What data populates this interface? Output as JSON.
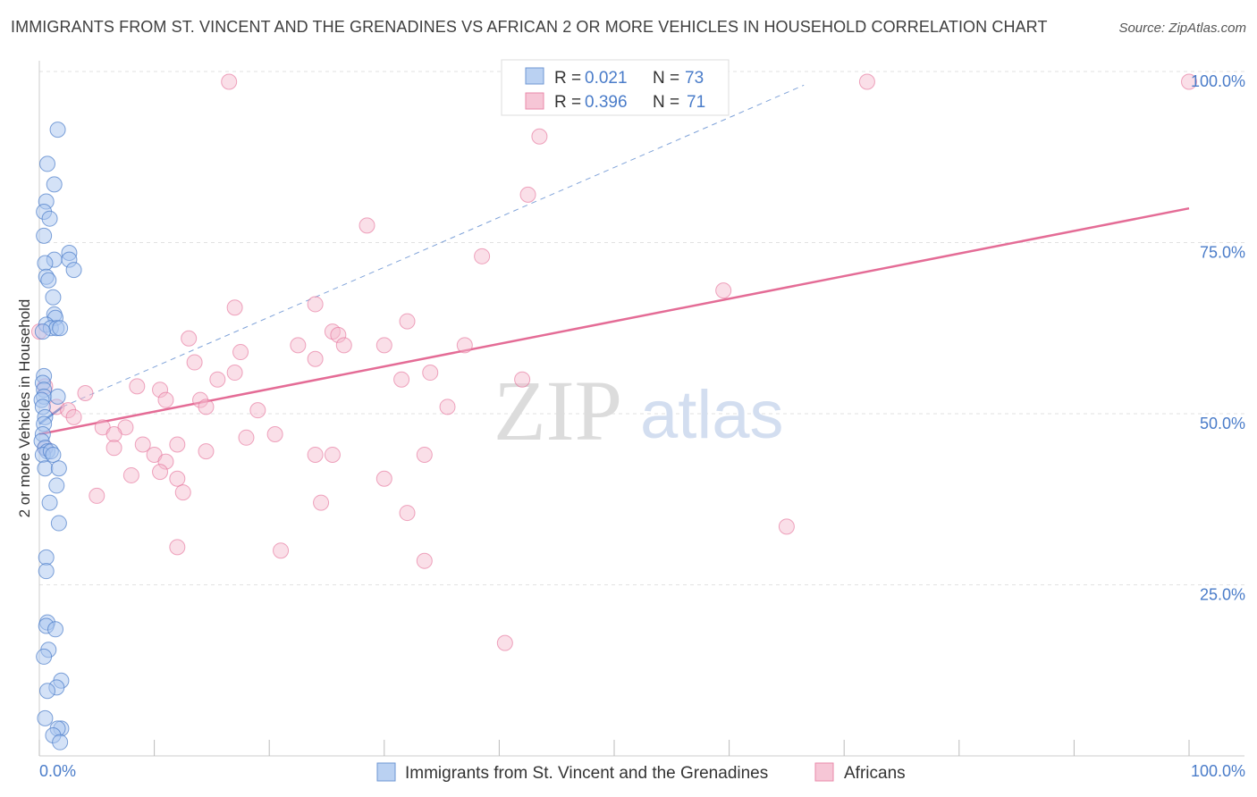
{
  "title": "IMMIGRANTS FROM ST. VINCENT AND THE GRENADINES VS AFRICAN 2 OR MORE VEHICLES IN HOUSEHOLD CORRELATION CHART",
  "source": "Source: ZipAtlas.com",
  "watermark": {
    "zip": "ZIP",
    "atlas": "atlas"
  },
  "colors": {
    "blue": "#4a7cc9",
    "blue_fill": "#a9c6f0",
    "pink": "#e46c96",
    "pink_fill": "#f4b9cd",
    "grid": "#e2e2e2"
  },
  "legend": {
    "rows": [
      {
        "r_label": "R =",
        "r_value": "0.021",
        "n_label": "N =",
        "n_value": "73"
      },
      {
        "r_label": "R =",
        "r_value": "0.396",
        "n_label": "N =",
        "n_value": "71"
      }
    ]
  },
  "bottom_legend": [
    "Immigrants from St. Vincent and the Grenadines",
    "Africans"
  ],
  "chart_data": {
    "type": "scatter",
    "title": "IMMIGRANTS FROM ST. VINCENT AND THE GRENADINES VS AFRICAN 2 OR MORE VEHICLES IN HOUSEHOLD CORRELATION CHART",
    "xlabel": "",
    "ylabel": "2 or more Vehicles in Household",
    "xlim": [
      0,
      100
    ],
    "ylim": [
      0,
      100
    ],
    "x_tick_labels": [
      "0.0%",
      "100.0%"
    ],
    "y_tick_labels": [
      "25.0%",
      "50.0%",
      "75.0%",
      "100.0%"
    ],
    "y_ticks": [
      25,
      50,
      75,
      100
    ],
    "grid": true,
    "legend_position": "top-center",
    "series": [
      {
        "name": "Immigrants from St. Vincent and the Grenadines",
        "color": "#4a7cc9",
        "points": [
          [
            1.6,
            91.5
          ],
          [
            0.7,
            86.5
          ],
          [
            1.3,
            83.5
          ],
          [
            0.6,
            81
          ],
          [
            0.4,
            79.5
          ],
          [
            0.9,
            78.5
          ],
          [
            0.4,
            76
          ],
          [
            2.6,
            73.5
          ],
          [
            1.3,
            72.5
          ],
          [
            0.5,
            72
          ],
          [
            2.6,
            72.5
          ],
          [
            3.0,
            71
          ],
          [
            0.6,
            70
          ],
          [
            0.8,
            69.5
          ],
          [
            1.2,
            67
          ],
          [
            1.3,
            64.5
          ],
          [
            1.4,
            64
          ],
          [
            0.6,
            63
          ],
          [
            1.0,
            62.5
          ],
          [
            1.5,
            62.5
          ],
          [
            1.8,
            62.5
          ],
          [
            0.3,
            62
          ],
          [
            0.4,
            55.5
          ],
          [
            0.3,
            54.5
          ],
          [
            0.4,
            53.5
          ],
          [
            0.4,
            52.5
          ],
          [
            1.6,
            52.5
          ],
          [
            0.2,
            52
          ],
          [
            0.3,
            51
          ],
          [
            0.5,
            49.5
          ],
          [
            0.4,
            48.5
          ],
          [
            0.3,
            47
          ],
          [
            0.2,
            46
          ],
          [
            0.5,
            45
          ],
          [
            0.7,
            44.5
          ],
          [
            0.3,
            44
          ],
          [
            1.0,
            44.5
          ],
          [
            1.2,
            44
          ],
          [
            0.5,
            42
          ],
          [
            1.7,
            42
          ],
          [
            1.5,
            39.5
          ],
          [
            0.9,
            37
          ],
          [
            1.7,
            34
          ],
          [
            0.6,
            29
          ],
          [
            0.6,
            27
          ],
          [
            0.7,
            19.5
          ],
          [
            0.6,
            19
          ],
          [
            1.4,
            18.5
          ],
          [
            0.8,
            15.5
          ],
          [
            0.4,
            14.5
          ],
          [
            1.9,
            11
          ],
          [
            1.5,
            10
          ],
          [
            0.7,
            9.5
          ],
          [
            0.5,
            5.5
          ],
          [
            1.9,
            4
          ],
          [
            1.6,
            4
          ],
          [
            1.2,
            3
          ],
          [
            1.8,
            2
          ]
        ],
        "trend_line": {
          "x": [
            0,
            2.0
          ],
          "y": [
            48.5,
            51.0
          ]
        },
        "trend_line_extended": {
          "x": [
            2.0,
            66.5
          ],
          "y": [
            51.0,
            98.0
          ]
        }
      },
      {
        "name": "Africans",
        "color": "#e46c96",
        "points": [
          [
            16.5,
            98.5
          ],
          [
            72.0,
            98.5
          ],
          [
            100.0,
            98.5
          ],
          [
            43.5,
            90.5
          ],
          [
            42.5,
            82
          ],
          [
            28.5,
            77.5
          ],
          [
            38.5,
            73
          ],
          [
            59.5,
            68
          ],
          [
            17.0,
            65.5
          ],
          [
            24.0,
            66
          ],
          [
            25.5,
            62
          ],
          [
            26.0,
            61.5
          ],
          [
            26.5,
            60
          ],
          [
            32.0,
            63.5
          ],
          [
            13.0,
            61
          ],
          [
            22.5,
            60
          ],
          [
            17.5,
            59
          ],
          [
            30.0,
            60
          ],
          [
            37.0,
            60
          ],
          [
            13.5,
            57.5
          ],
          [
            24.0,
            58
          ],
          [
            17.0,
            56
          ],
          [
            15.5,
            55
          ],
          [
            31.5,
            55
          ],
          [
            34.0,
            56
          ],
          [
            42.0,
            55
          ],
          [
            8.5,
            54
          ],
          [
            10.5,
            53.5
          ],
          [
            0.5,
            54
          ],
          [
            4.0,
            53
          ],
          [
            11.0,
            52
          ],
          [
            14.0,
            52
          ],
          [
            14.5,
            51
          ],
          [
            1.5,
            51
          ],
          [
            2.5,
            50.5
          ],
          [
            19.0,
            50.5
          ],
          [
            35.5,
            51
          ],
          [
            3.0,
            49.5
          ],
          [
            0.0,
            62
          ],
          [
            5.5,
            48
          ],
          [
            7.5,
            48
          ],
          [
            6.5,
            47
          ],
          [
            18.0,
            46.5
          ],
          [
            20.5,
            47
          ],
          [
            9.0,
            45.5
          ],
          [
            12.0,
            45.5
          ],
          [
            6.5,
            45
          ],
          [
            14.5,
            44.5
          ],
          [
            0.5,
            45
          ],
          [
            10.0,
            44
          ],
          [
            25.5,
            44
          ],
          [
            33.5,
            44
          ],
          [
            24.0,
            44
          ],
          [
            11.0,
            43
          ],
          [
            8.0,
            41
          ],
          [
            10.5,
            41.5
          ],
          [
            12.0,
            40.5
          ],
          [
            30.0,
            40.5
          ],
          [
            12.5,
            38.5
          ],
          [
            5.0,
            38
          ],
          [
            24.5,
            37
          ],
          [
            32.0,
            35.5
          ],
          [
            65.0,
            33.5
          ],
          [
            12.0,
            30.5
          ],
          [
            21.0,
            30
          ],
          [
            33.5,
            28.5
          ],
          [
            40.5,
            16.5
          ]
        ],
        "trend_line": {
          "x": [
            0,
            100
          ],
          "y": [
            47.0,
            80.0
          ]
        }
      }
    ]
  }
}
